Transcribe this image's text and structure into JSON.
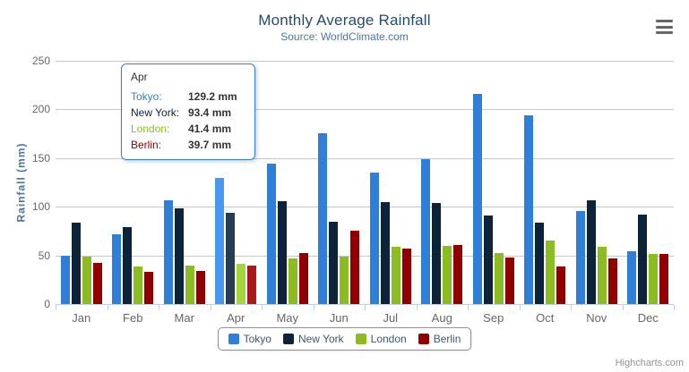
{
  "header": {
    "title": "Monthly Average Rainfall",
    "subtitle": "Source: WorldClimate.com"
  },
  "chart_data": {
    "type": "bar",
    "title": "Monthly Average Rainfall",
    "subtitle": "Source: WorldClimate.com",
    "xlabel": "",
    "ylabel": "Rainfall (mm)",
    "ylim": [
      0,
      250
    ],
    "yticks": [
      0,
      50,
      100,
      150,
      200,
      250
    ],
    "grid": true,
    "legend_position": "bottom",
    "categories": [
      "Jan",
      "Feb",
      "Mar",
      "Apr",
      "May",
      "Jun",
      "Jul",
      "Aug",
      "Sep",
      "Oct",
      "Nov",
      "Dec"
    ],
    "series": [
      {
        "name": "Tokyo",
        "color": "#2f7ed8",
        "hover_color": "#4897f1",
        "values": [
          49.9,
          71.5,
          106.4,
          129.2,
          144.0,
          176.0,
          135.6,
          148.5,
          216.4,
          194.1,
          95.6,
          54.4
        ]
      },
      {
        "name": "New York",
        "color": "#0d233a",
        "hover_color": "#263c53",
        "values": [
          83.6,
          78.8,
          98.5,
          93.4,
          106.0,
          84.5,
          105.0,
          104.3,
          91.2,
          83.5,
          106.6,
          92.3
        ]
      },
      {
        "name": "London",
        "color": "#8bbc21",
        "hover_color": "#a4d53a",
        "values": [
          48.9,
          38.8,
          39.3,
          41.4,
          47.0,
          48.3,
          59.0,
          59.6,
          52.4,
          65.2,
          59.3,
          51.2
        ]
      },
      {
        "name": "Berlin",
        "color": "#910000",
        "hover_color": "#aa1919",
        "values": [
          42.4,
          33.2,
          34.5,
          39.7,
          52.6,
          75.5,
          57.4,
          60.4,
          47.6,
          39.1,
          46.8,
          51.1
        ]
      }
    ],
    "hovered_category_index": 3
  },
  "tooltip": {
    "header": "Apr",
    "border_color": "#2f7ed8",
    "rows": [
      {
        "label": "Tokyo:",
        "value": "129.2 mm",
        "color": "#2f7ed8"
      },
      {
        "label": "New York:",
        "value": "93.4 mm",
        "color": "#0d233a"
      },
      {
        "label": "London:",
        "value": "41.4 mm",
        "color": "#8bbc21"
      },
      {
        "label": "Berlin:",
        "value": "39.7 mm",
        "color": "#910000"
      }
    ]
  },
  "credits": {
    "label": "Highcharts.com"
  }
}
